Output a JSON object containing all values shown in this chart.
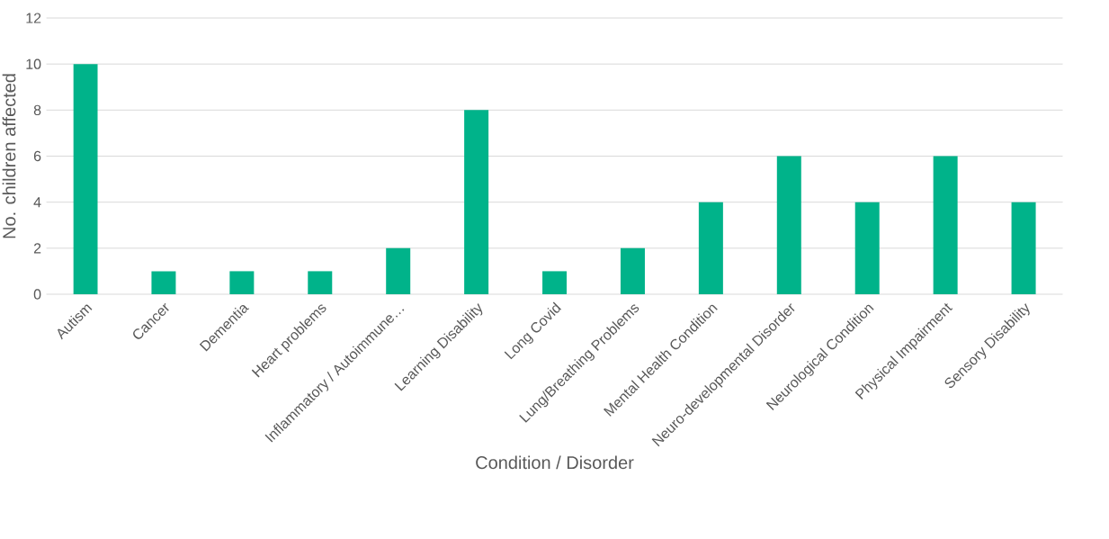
{
  "chart_data": {
    "type": "bar",
    "xlabel": "Condition / Disorder",
    "ylabel": "No. children affected",
    "categories": [
      "Autism",
      "Cancer",
      "Dementia",
      "Heart problems",
      "Inflammatory / Autoimmune…",
      "Learning Disability",
      "Long Covid",
      "Lung/Breathing Problems",
      "Mental Health Condition",
      "Neuro-developmental Disorder",
      "Neurological Condition",
      "Physical Impairment",
      "Sensory Disability"
    ],
    "values": [
      10,
      1,
      1,
      1,
      2,
      8,
      1,
      2,
      4,
      6,
      4,
      6,
      4
    ],
    "color": "#00b38a",
    "ylim": [
      0,
      12
    ],
    "yticks": [
      0,
      2,
      4,
      6,
      8,
      10,
      12
    ],
    "grid": "y"
  }
}
